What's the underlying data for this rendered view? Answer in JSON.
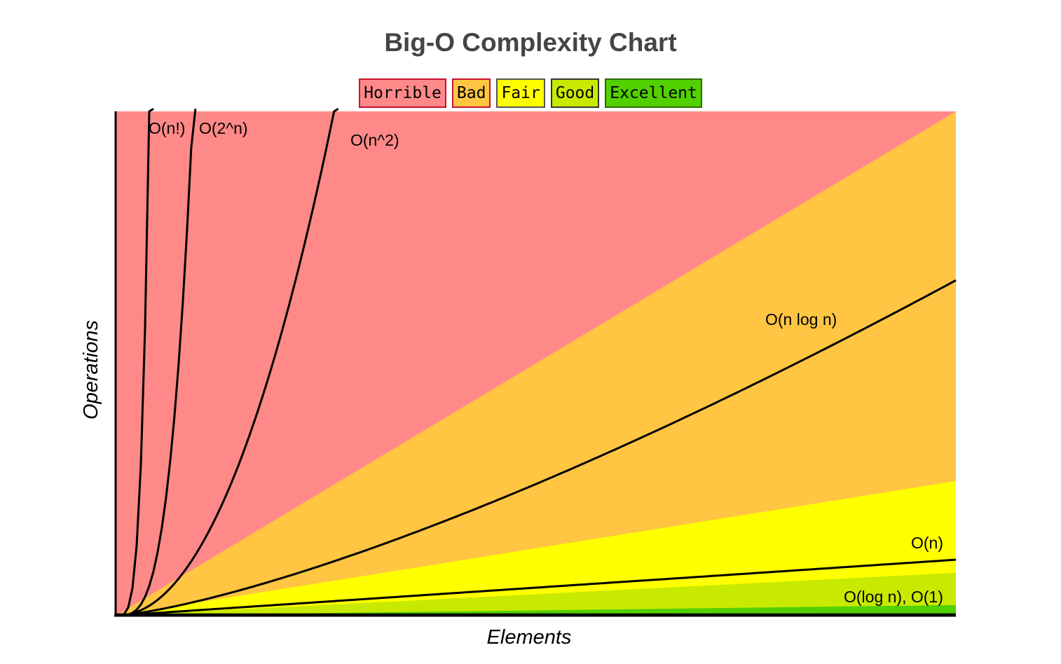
{
  "chart_data": {
    "type": "area",
    "title": "Big-O Complexity Chart",
    "xlabel": "Elements",
    "ylabel": "Operations",
    "grid": false,
    "legend_position": "top-center",
    "xlim": [
      0,
      100
    ],
    "ylim": [
      0,
      100
    ],
    "legend": [
      {
        "label": "Horrible",
        "color": "#ff8989",
        "border": "#c8102e"
      },
      {
        "label": "Bad",
        "color": "#ffc543",
        "border": "#c8102e"
      },
      {
        "label": "Fair",
        "color": "#ffff00",
        "border": "#555555"
      },
      {
        "label": "Good",
        "color": "#c8ea00",
        "border": "#333333"
      },
      {
        "label": "Excellent",
        "color": "#53d000",
        "border": "#2a6a00"
      }
    ],
    "regions": [
      {
        "name": "Horrible",
        "color": "#ff8989",
        "top_at_max_x": 100
      },
      {
        "name": "Bad",
        "color": "#ffc543",
        "top_at_max_x": 100
      },
      {
        "name": "Fair",
        "color": "#ffff00",
        "top_at_max_x": 26.7
      },
      {
        "name": "Good",
        "color": "#c8ea00",
        "top_at_max_x": 8.5
      },
      {
        "name": "Excellent",
        "color": "#53d000",
        "top_at_max_x": 2.1
      }
    ],
    "series": [
      {
        "name": "O(n!)",
        "function": "factorial"
      },
      {
        "name": "O(2^n)",
        "function": "exponential"
      },
      {
        "name": "O(n^2)",
        "function": "quadratic"
      },
      {
        "name": "O(n log n)",
        "function": "nlogn"
      },
      {
        "name": "O(n)",
        "function": "linear"
      },
      {
        "name": "O(log n), O(1)",
        "function": "constant"
      }
    ]
  }
}
